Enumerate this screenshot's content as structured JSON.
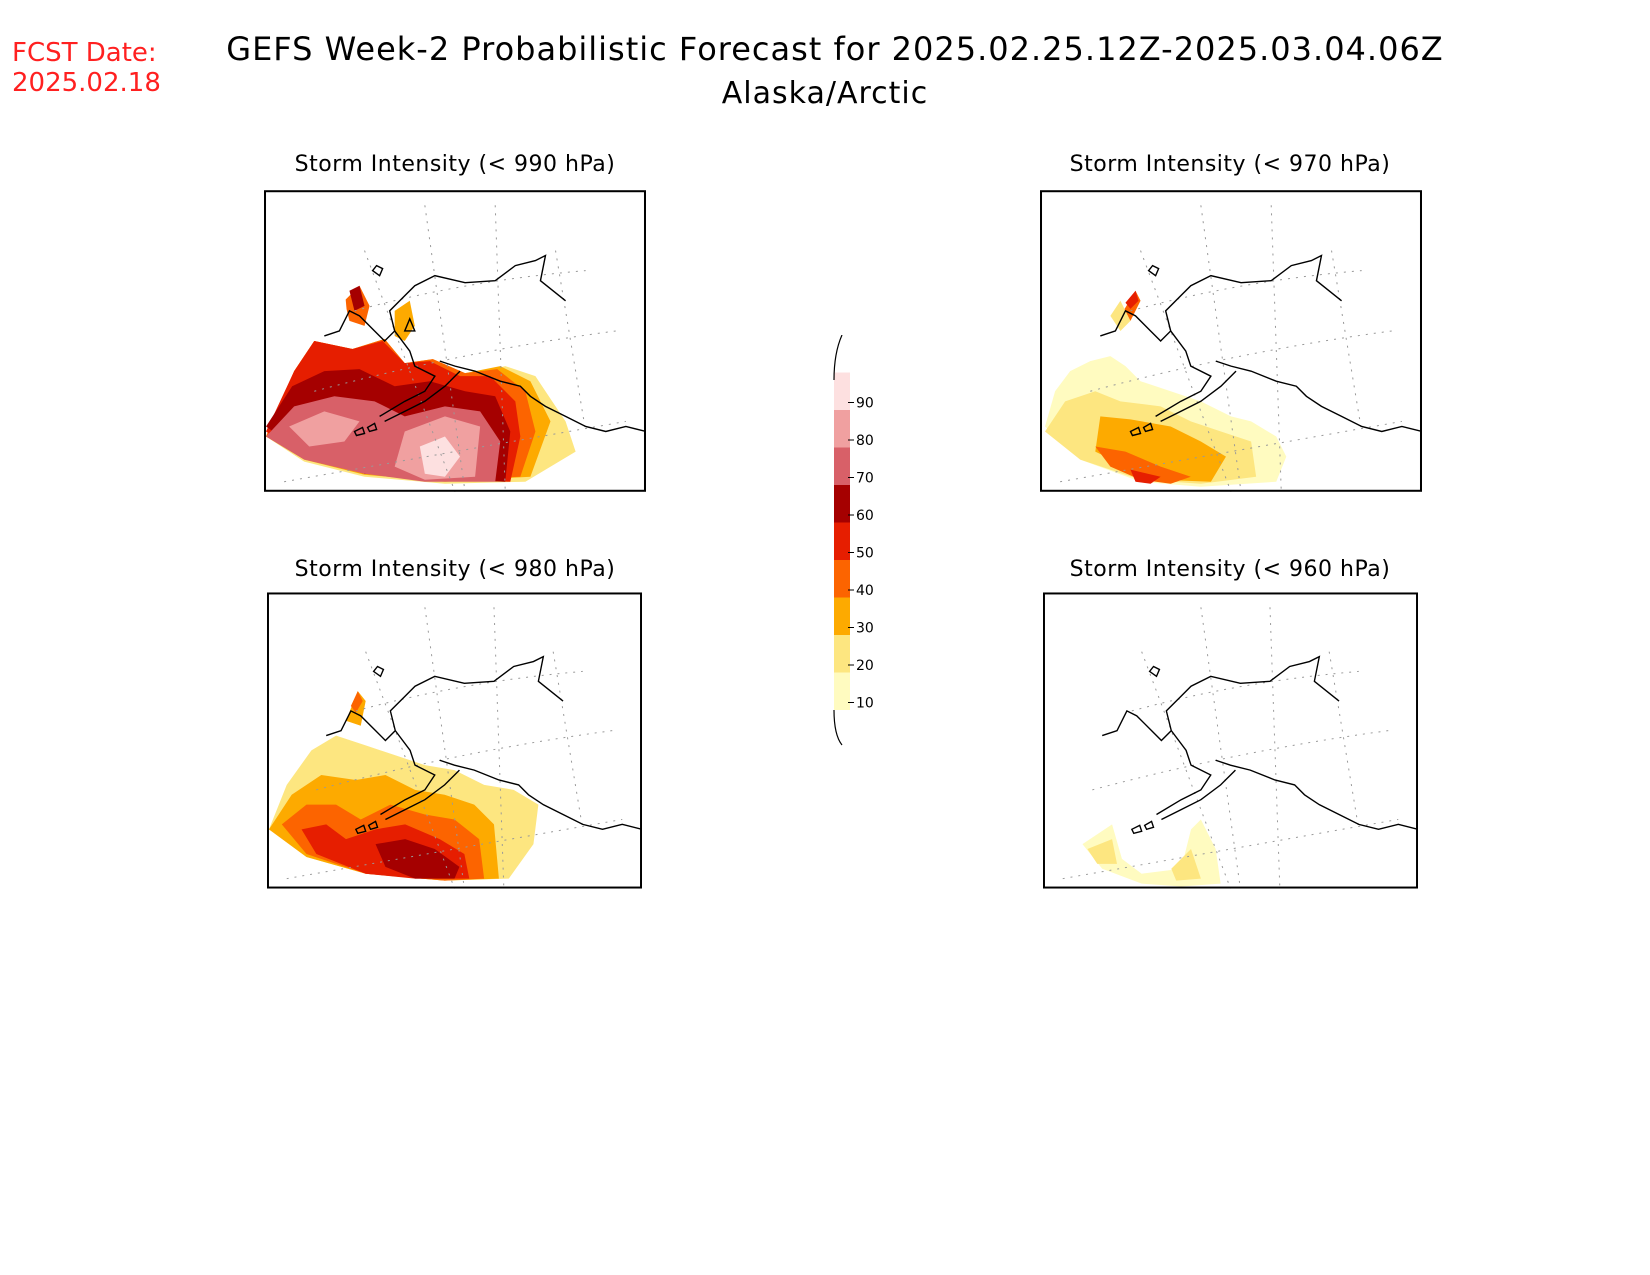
{
  "header": {
    "fcst_label": "FCST Date:",
    "fcst_date": "2025.02.18",
    "title": "GEFS Week-2 Probabilistic Forecast for 2025.02.25.12Z-2025.03.04.06Z",
    "region": "Alaska/Arctic"
  },
  "panels": [
    {
      "id": "p990",
      "title": "Storm Intensity (< 990 hPa)"
    },
    {
      "id": "p970",
      "title": "Storm Intensity (< 970 hPa)"
    },
    {
      "id": "p980",
      "title": "Storm Intensity (< 980 hPa)"
    },
    {
      "id": "p960",
      "title": "Storm Intensity (< 960 hPa)"
    }
  ],
  "colorbar": {
    "levels": [
      "10",
      "20",
      "30",
      "40",
      "50",
      "60",
      "70",
      "80",
      "90"
    ],
    "colors": [
      "#fffbc0",
      "#fde680",
      "#fdaa00",
      "#fc6400",
      "#e61e00",
      "#a50000",
      "#d86068",
      "#f0a0a0",
      "#fde0e0"
    ]
  }
}
